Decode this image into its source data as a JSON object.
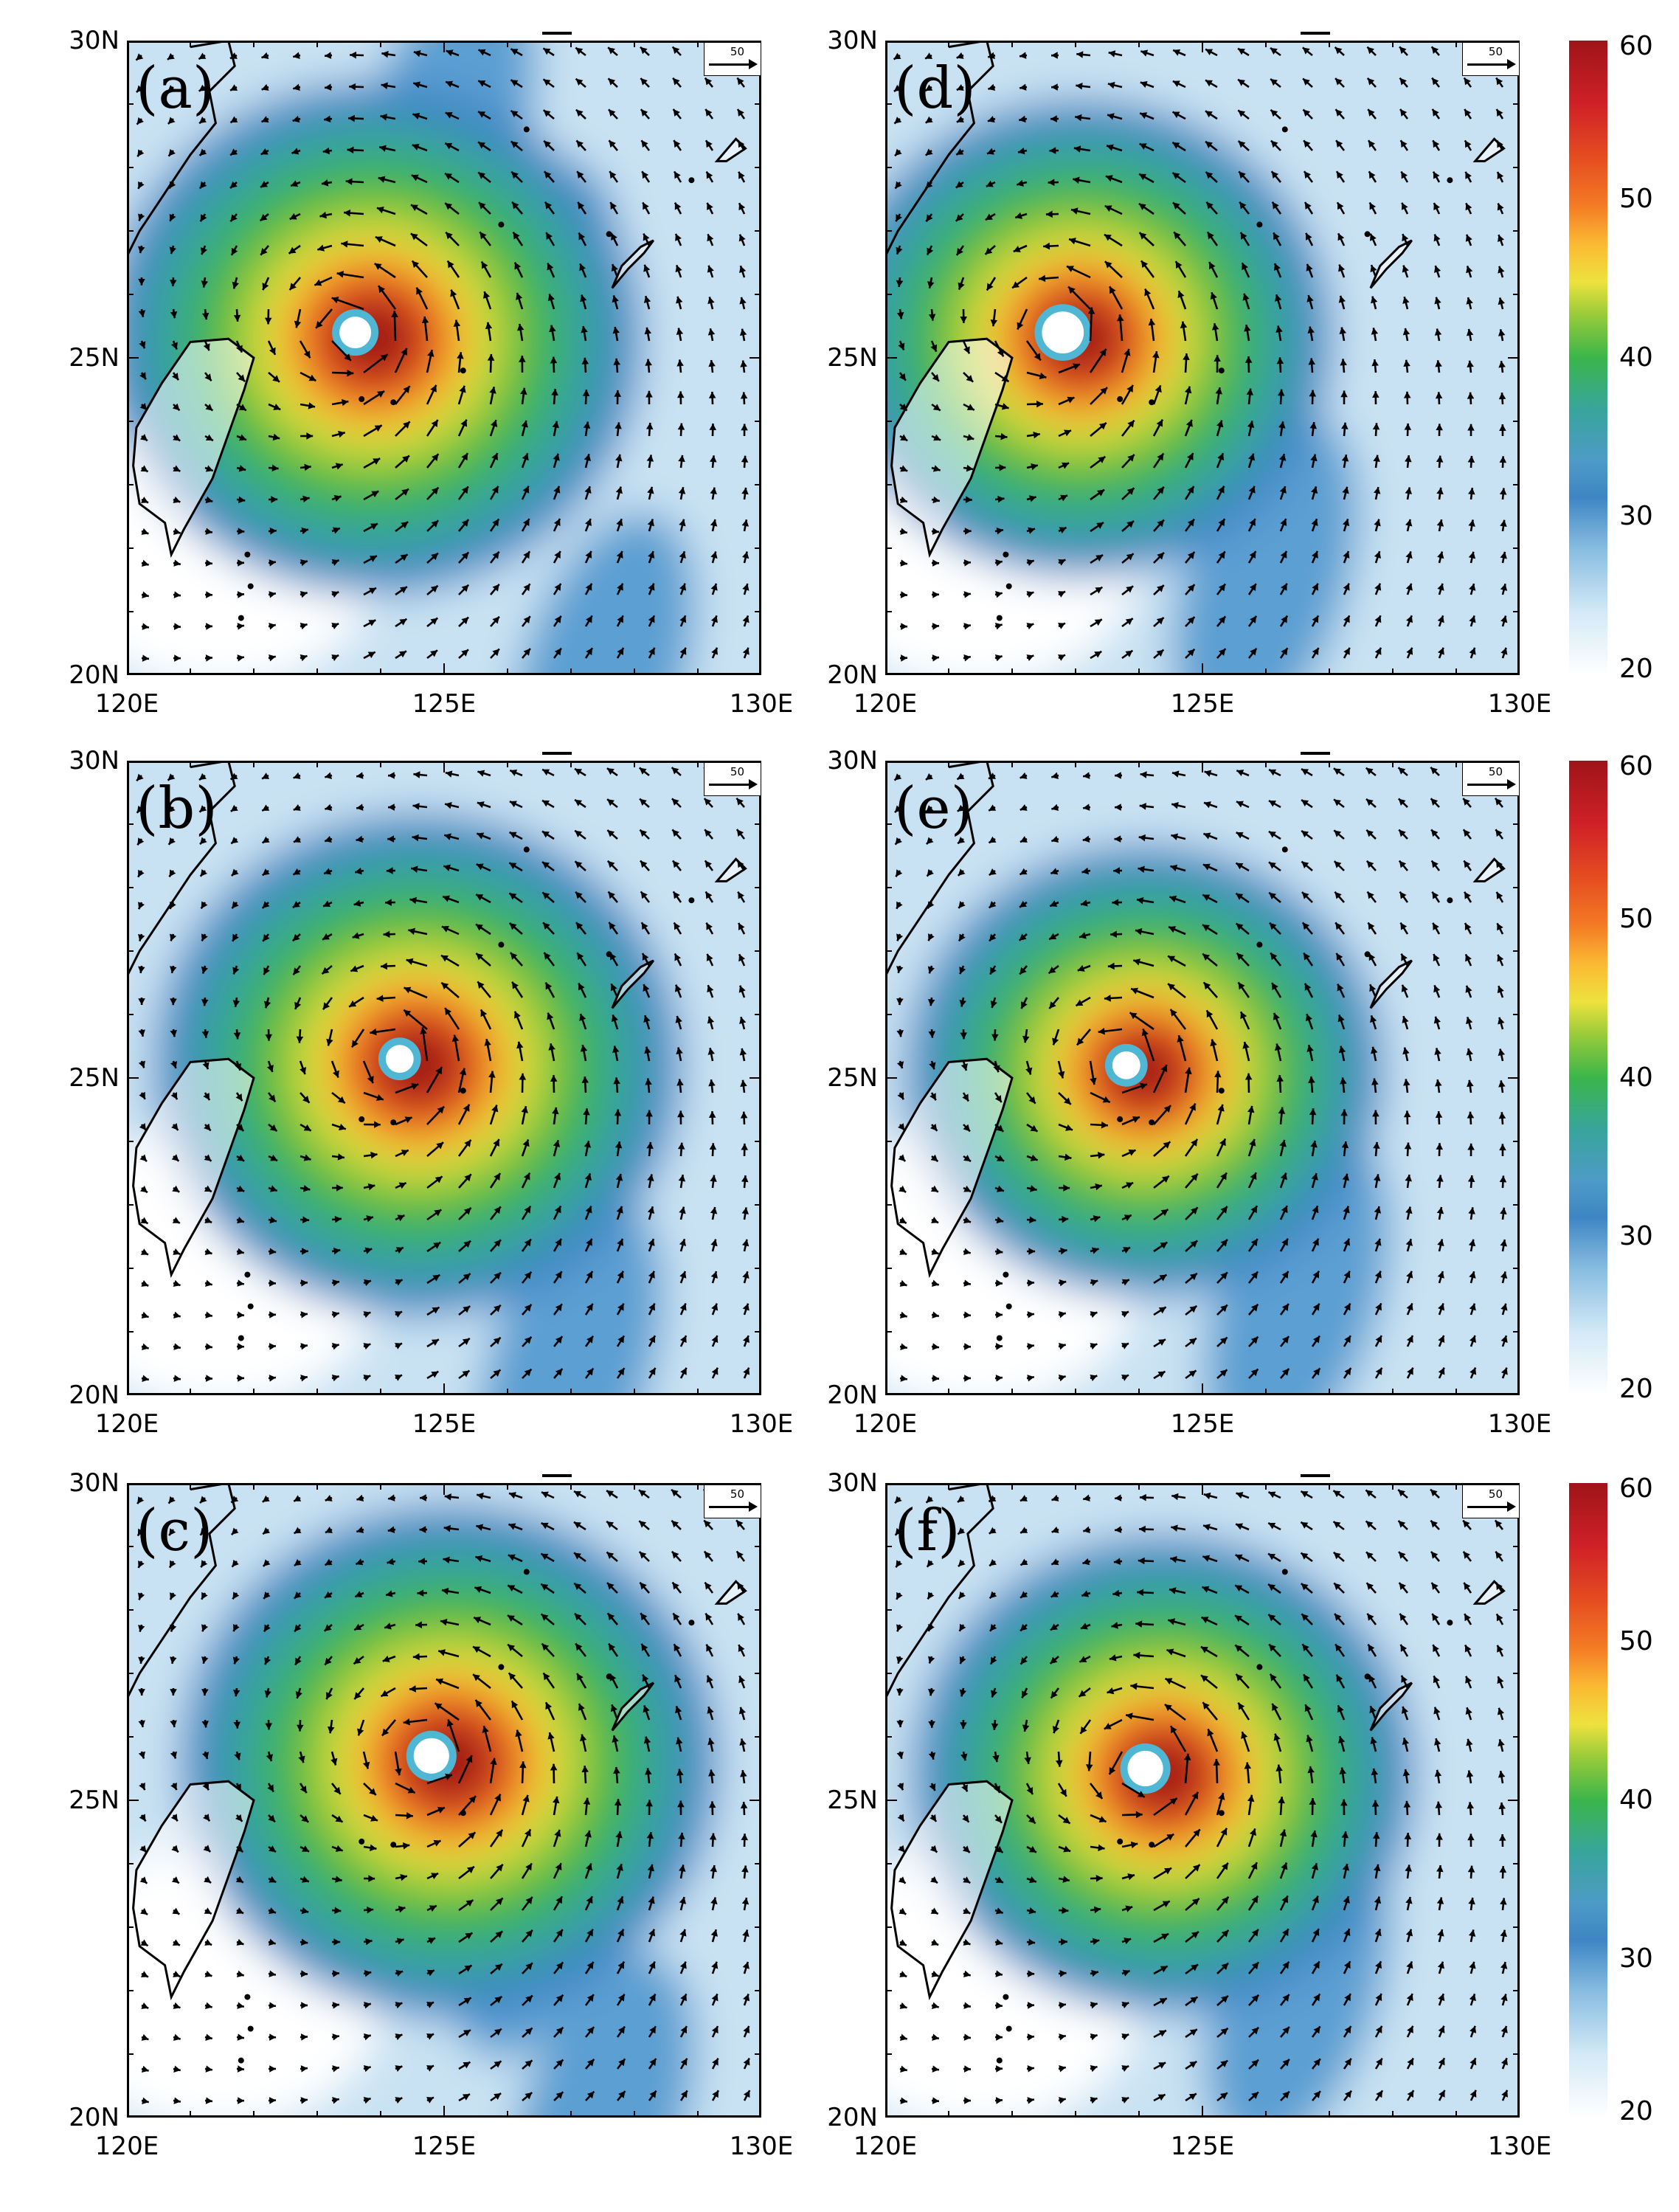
{
  "panels": [
    {
      "id": "a",
      "label": "(a)",
      "col": 0,
      "row": 0,
      "center": [
        123.6,
        25.4
      ],
      "eye_radius_deg": 0.25,
      "core": 0.62,
      "band": [
        [
          127.5,
          20.0
        ],
        [
          126.3,
          25.5
        ],
        [
          125.0,
          28.5
        ]
      ]
    },
    {
      "id": "b",
      "label": "(b)",
      "col": 0,
      "row": 1,
      "center": [
        124.3,
        25.3
      ],
      "eye_radius_deg": 0.22,
      "core": 0.6,
      "band": [
        [
          127.0,
          20.5
        ],
        [
          126.2,
          24.0
        ]
      ]
    },
    {
      "id": "c",
      "label": "(c)",
      "col": 0,
      "row": 2,
      "center": [
        124.8,
        25.7
      ],
      "eye_radius_deg": 0.28,
      "core": 0.62,
      "band": [
        [
          127.5,
          20.0
        ],
        [
          126.5,
          23.5
        ]
      ]
    },
    {
      "id": "d",
      "label": "(d)",
      "col": 1,
      "row": 0,
      "center": [
        122.8,
        25.4
      ],
      "eye_radius_deg": 0.33,
      "core": 0.55,
      "band": [
        [
          126.0,
          21.5
        ]
      ]
    },
    {
      "id": "e",
      "label": "(e)",
      "col": 1,
      "row": 1,
      "center": [
        123.8,
        25.2
      ],
      "eye_radius_deg": 0.22,
      "core": 0.5,
      "band": [
        [
          126.5,
          21.5
        ]
      ]
    },
    {
      "id": "f",
      "label": "(f)",
      "col": 1,
      "row": 2,
      "center": [
        124.1,
        25.5
      ],
      "eye_radius_deg": 0.28,
      "core": 0.55,
      "band": [
        [
          126.5,
          22.0
        ]
      ]
    }
  ],
  "axes": {
    "x_ticks": [
      "120E",
      "125E",
      "130E"
    ],
    "y_ticks": [
      "30N",
      "25N",
      "20N"
    ],
    "lon_range": [
      120,
      130
    ],
    "lat_range": [
      20,
      30
    ]
  },
  "reference_vector": {
    "label": "50",
    "value": 50
  },
  "colorbar": {
    "labels": [
      "60",
      "50",
      "40",
      "30",
      "20"
    ],
    "range": [
      20,
      60
    ],
    "colors": [
      "#ffffff",
      "#d3e9f6",
      "#87bce1",
      "#3d86c4",
      "#37a59b",
      "#3ab54a",
      "#9ccc3a",
      "#eee23e",
      "#fbb933",
      "#f47b24",
      "#e44a20",
      "#cf2127",
      "#9e1419"
    ]
  }
}
